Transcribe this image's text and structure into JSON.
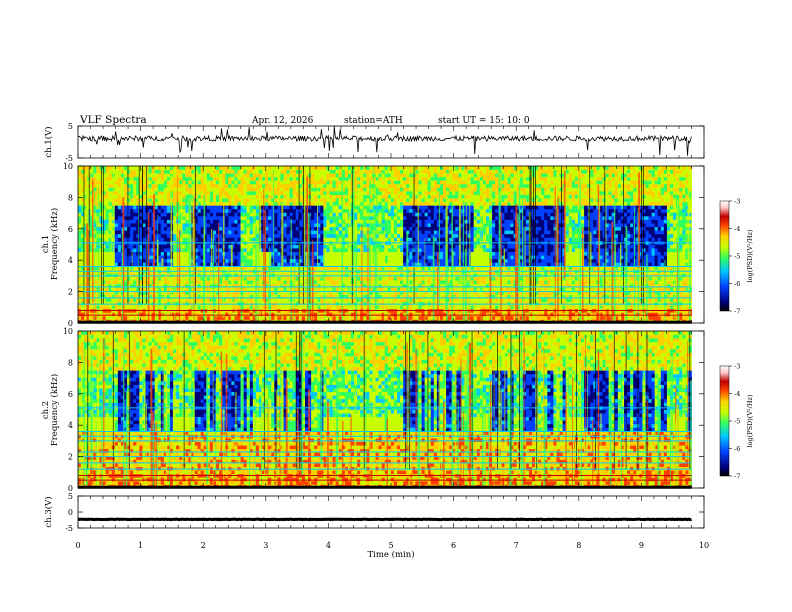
{
  "header": {
    "title": "VLF  Spectra",
    "date": "Apr. 12, 2026",
    "station": "station=ATH",
    "start": "start  UT  =    15: 10: 0"
  },
  "chart_data": {
    "type": "heatmap",
    "title": "VLF  Spectra",
    "xlabel": "Time  (min)",
    "xlim": [
      0,
      10
    ],
    "x_ticks": [
      "0",
      "1",
      "2",
      "3",
      "4",
      "5",
      "6",
      "7",
      "8",
      "9",
      "10"
    ],
    "panels": [
      {
        "id": "ch1v",
        "type": "line",
        "ylabel": "ch.1(V)",
        "ylim": [
          -5,
          5
        ],
        "y_ticks": [
          "5",
          "-5"
        ],
        "baseline": 1.1,
        "series": "ch.1 waveform"
      },
      {
        "id": "ch1s",
        "type": "heatmap",
        "ylabel_top": "ch.1",
        "ylabel": "Frequency  (kHz)",
        "ylim": [
          0,
          10
        ],
        "y_ticks": [
          "0",
          "2",
          "4",
          "6",
          "8",
          "10"
        ],
        "colorbar": {
          "label": "log(PSD)(V²/Hz)",
          "range": [
            -7,
            -3
          ],
          "ticks": [
            "-3",
            "-4",
            "-5",
            "-6",
            "-7"
          ]
        }
      },
      {
        "id": "ch2s",
        "type": "heatmap",
        "ylabel_top": "ch.2",
        "ylabel": "Frequency  (kHz)",
        "ylim": [
          0,
          10
        ],
        "y_ticks": [
          "0",
          "2",
          "4",
          "6",
          "8",
          "10"
        ],
        "colorbar": {
          "label": "log(PSD)(V²/Hz)",
          "range": [
            -7,
            -3
          ],
          "ticks": [
            "-3",
            "-4",
            "-5",
            "-6",
            "-7"
          ]
        }
      },
      {
        "id": "ch3v",
        "type": "line",
        "ylabel": "ch.3(V)",
        "ylim": [
          -5,
          5
        ],
        "y_ticks": [
          "5",
          "0",
          "-5"
        ],
        "baseline": -2.3,
        "series": "ch.3 waveform"
      }
    ],
    "data_end_min": 9.8,
    "pulse_blocks_min": [
      [
        0,
        0.6
      ],
      [
        1.5,
        1.8
      ],
      [
        2.8,
        3.1
      ],
      [
        3.9,
        4.9
      ],
      [
        4.95,
        5.2
      ],
      [
        6.25,
        6.55
      ],
      [
        7.8,
        8.1
      ],
      [
        9.4,
        9.7
      ]
    ],
    "pulse_band_khz": [
      3.8,
      4.4
    ],
    "quiet_band_khz": [
      4.5,
      7.5
    ],
    "horizontal_lines_khz": [
      0.1,
      0.5,
      0.8,
      1.2,
      1.6,
      2.0,
      2.3,
      3.0,
      3.3,
      3.6,
      5.1
    ],
    "ch1_dark_intervals_min": [
      [
        0.6,
        1.5
      ],
      [
        1.8,
        2.6
      ],
      [
        2.9,
        3.9
      ],
      [
        5.2,
        6.3
      ],
      [
        6.6,
        7.8
      ],
      [
        8.1,
        9.4
      ]
    ],
    "colormap": [
      "#000000",
      "#00007a",
      "#0040ff",
      "#00c8ff",
      "#30ff60",
      "#c8ff00",
      "#ffd000",
      "#ff4000",
      "#c00000",
      "#ffc8c8",
      "#ffffff"
    ]
  }
}
